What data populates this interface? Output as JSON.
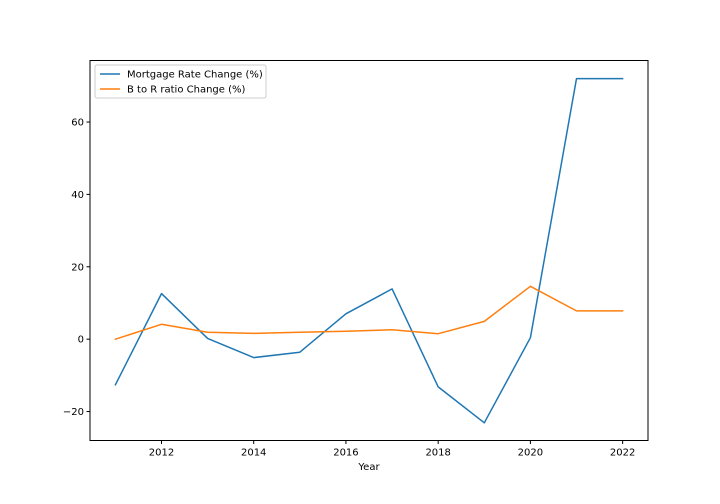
{
  "chart_data": {
    "type": "line",
    "title": "",
    "xlabel": "Year",
    "ylabel": "",
    "x": [
      2011,
      2012,
      2013,
      2014,
      2015,
      2016,
      2017,
      2018,
      2019,
      2020,
      2021,
      2022
    ],
    "xlim": [
      2010.45,
      2022.55
    ],
    "ylim": [
      -28,
      77
    ],
    "xticks": [
      2012,
      2014,
      2016,
      2018,
      2020,
      2022
    ],
    "yticks": [
      -20,
      0,
      20,
      40,
      60
    ],
    "ytick_labels": [
      "−20",
      "0",
      "20",
      "40",
      "60"
    ],
    "grid": false,
    "legend_position": "top-left",
    "series": [
      {
        "name": "Mortgage Rate Change (%)",
        "color": "#1f77b4",
        "values": [
          -12.6,
          12.6,
          0.2,
          -5.1,
          -3.6,
          7.0,
          13.9,
          -13.2,
          -23.1,
          0.4,
          72.0,
          72.0
        ]
      },
      {
        "name": "B to R ratio Change (%)",
        "color": "#ff7f0e",
        "values": [
          0.0,
          4.1,
          1.9,
          1.6,
          1.9,
          2.2,
          2.6,
          1.5,
          4.9,
          14.6,
          7.8,
          7.8
        ]
      }
    ]
  }
}
